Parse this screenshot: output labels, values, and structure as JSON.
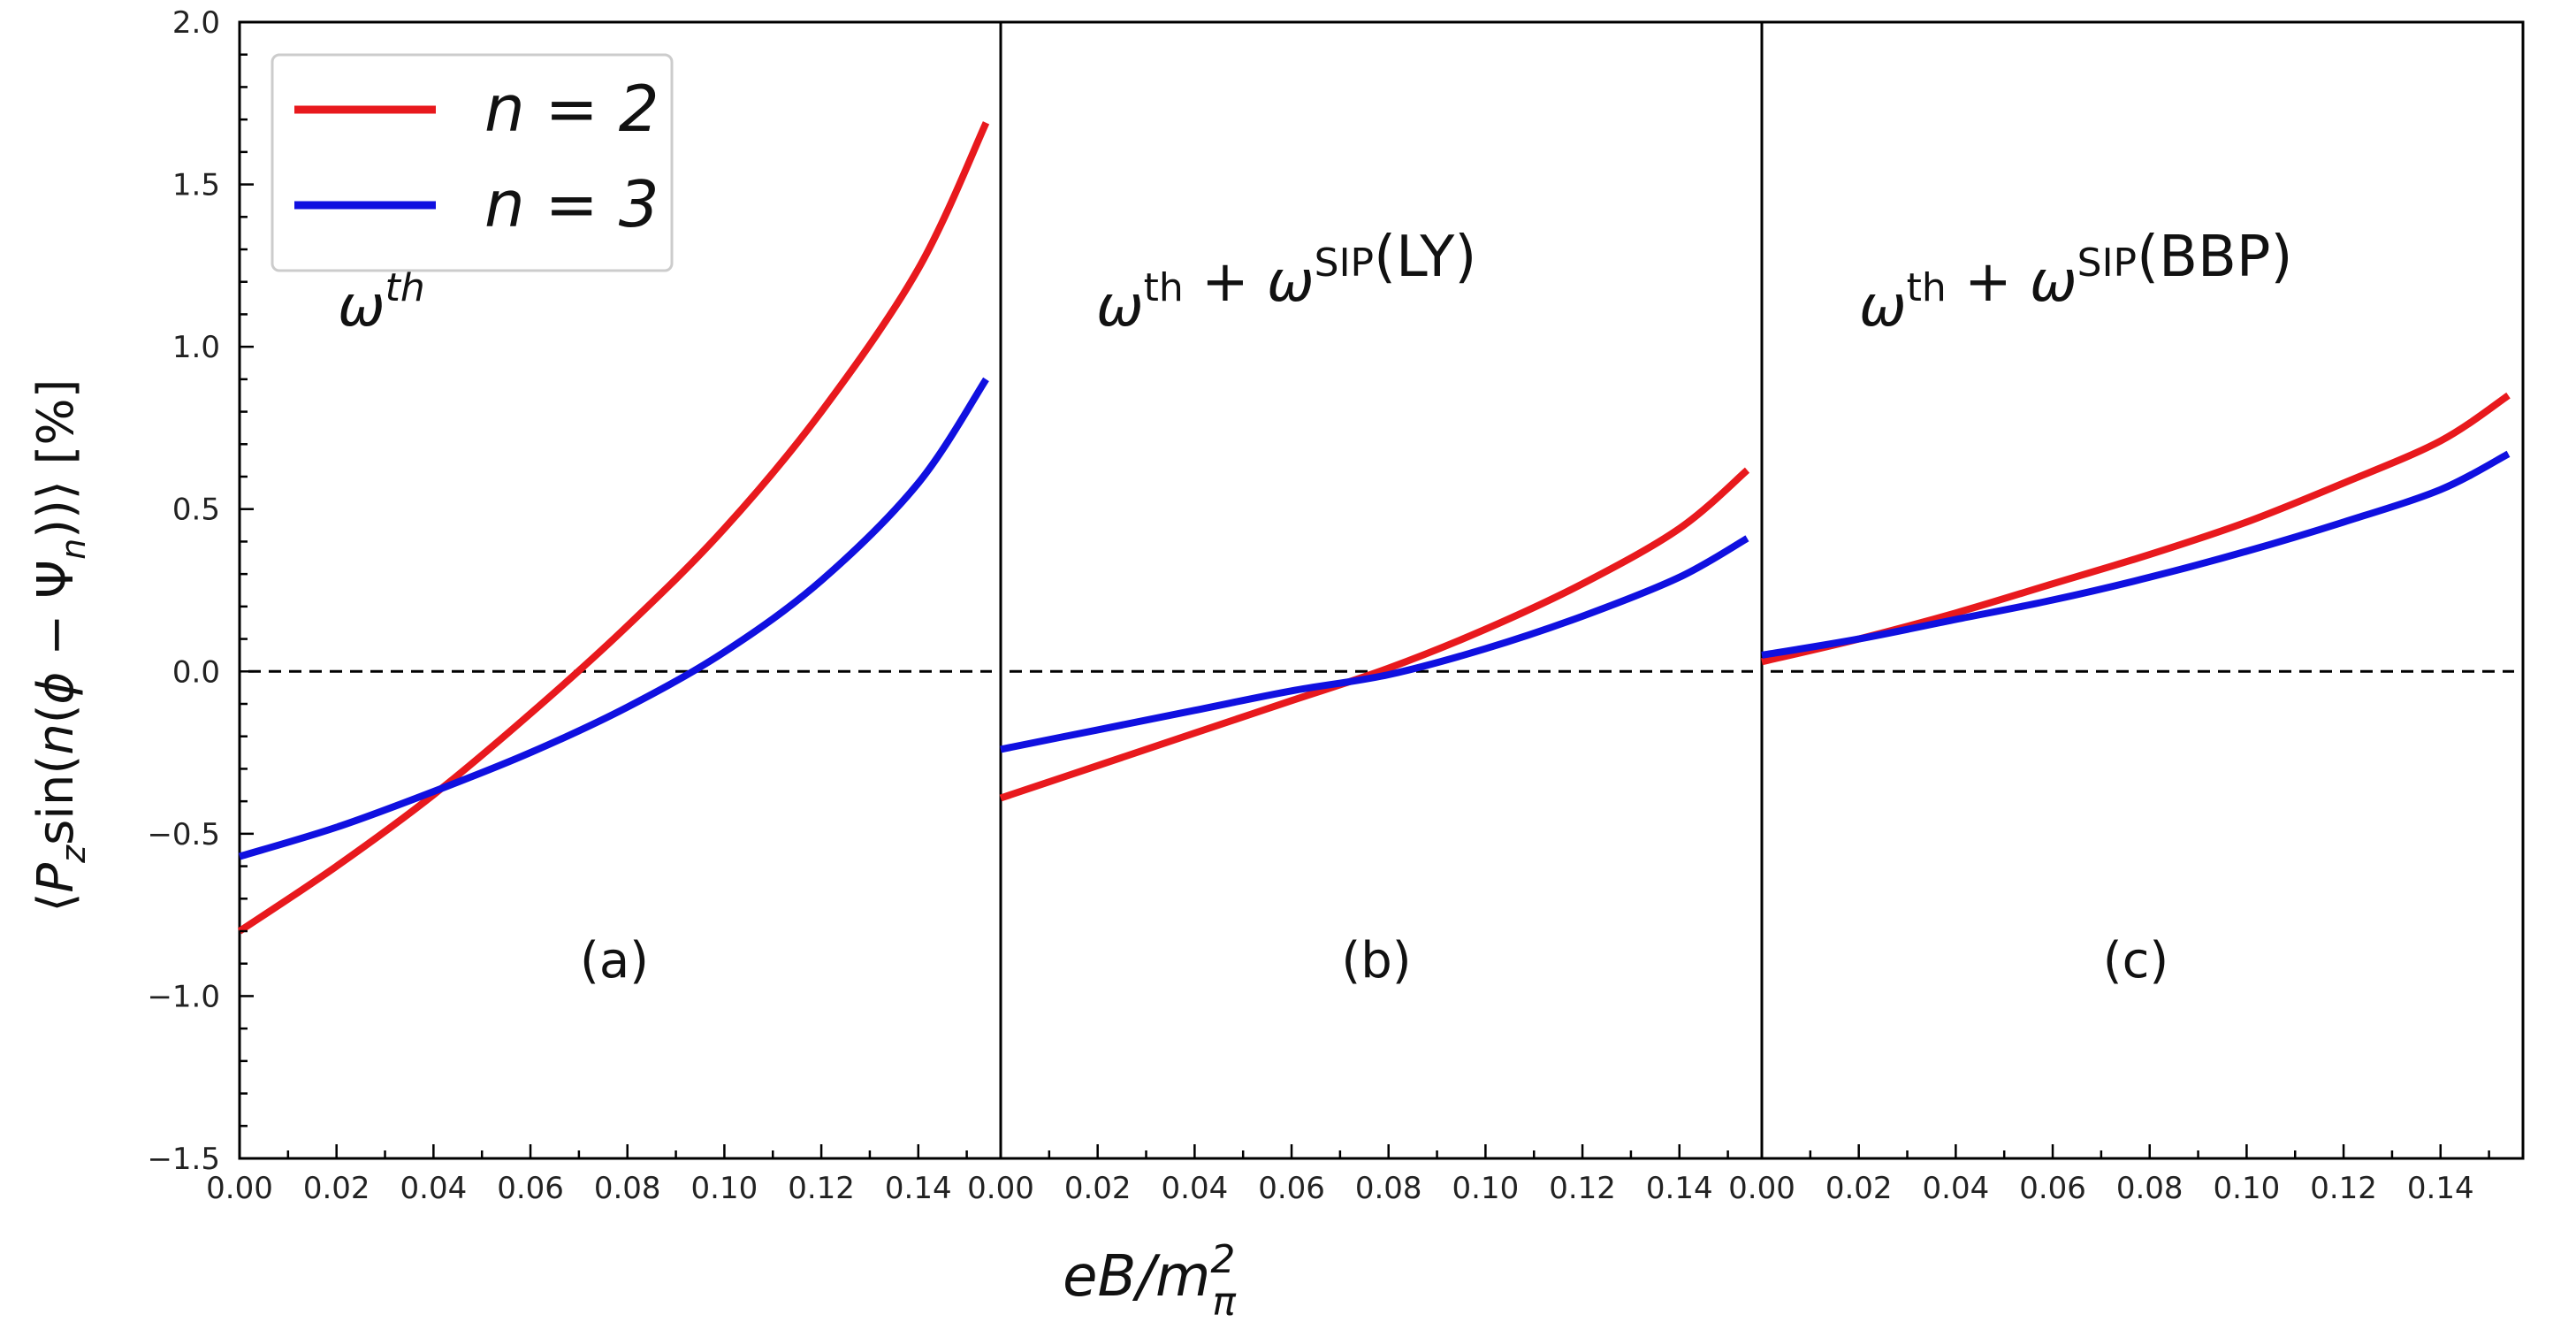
{
  "chart_data": {
    "type": "line",
    "xlabel": "eB/m_π^2",
    "ylabel": "⟨P_z sin(n(ϕ − Ψ_n))⟩ [%]",
    "ylim": [
      -1.5,
      2.0
    ],
    "xlim": [
      0.0,
      0.157
    ],
    "yticks": [
      "−1.5",
      "−1.0",
      "−0.5",
      "0.0",
      "0.5",
      "1.0",
      "1.5",
      "2.0"
    ],
    "xticks": [
      "0.00",
      "0.02",
      "0.04",
      "0.06",
      "0.08",
      "0.10",
      "0.12",
      "0.14"
    ],
    "grid": false,
    "zero_line": "dashed",
    "colors": {
      "n2": "#e8191d",
      "n3": "#1010e0"
    },
    "legend": {
      "placement": "top-left",
      "entries": [
        {
          "label": "n = 2",
          "color": "#e8191d"
        },
        {
          "label": "n = 3",
          "color": "#1010e0"
        }
      ]
    },
    "panels": [
      {
        "annotation": "ω^th",
        "tag": "(a)",
        "series": [
          {
            "name": "n = 2",
            "x": [
              0.0,
              0.02,
              0.04,
              0.06,
              0.08,
              0.1,
              0.12,
              0.14,
              0.154
            ],
            "values": [
              -0.8,
              -0.6,
              -0.38,
              -0.13,
              0.14,
              0.44,
              0.8,
              1.24,
              1.69
            ]
          },
          {
            "name": "n = 3",
            "x": [
              0.0,
              0.02,
              0.04,
              0.06,
              0.08,
              0.1,
              0.12,
              0.14,
              0.154
            ],
            "values": [
              -0.57,
              -0.48,
              -0.37,
              -0.25,
              -0.11,
              0.06,
              0.28,
              0.58,
              0.9
            ]
          }
        ]
      },
      {
        "annotation": "ω^th + ω^SIP(LY)",
        "tag": "(b)",
        "series": [
          {
            "name": "n = 2",
            "x": [
              0.0,
              0.02,
              0.04,
              0.06,
              0.08,
              0.1,
              0.12,
              0.14,
              0.154
            ],
            "values": [
              -0.39,
              -0.29,
              -0.19,
              -0.09,
              0.01,
              0.13,
              0.27,
              0.44,
              0.62
            ]
          },
          {
            "name": "n = 3",
            "x": [
              0.0,
              0.02,
              0.04,
              0.06,
              0.08,
              0.1,
              0.12,
              0.14,
              0.154
            ],
            "values": [
              -0.24,
              -0.18,
              -0.12,
              -0.06,
              -0.01,
              0.07,
              0.17,
              0.29,
              0.41
            ]
          }
        ]
      },
      {
        "annotation": "ω^th + ω^SIP(BBP)",
        "tag": "(c)",
        "series": [
          {
            "name": "n = 2",
            "x": [
              0.0,
              0.02,
              0.04,
              0.06,
              0.08,
              0.1,
              0.12,
              0.14,
              0.154
            ],
            "values": [
              0.03,
              0.1,
              0.18,
              0.27,
              0.36,
              0.46,
              0.58,
              0.71,
              0.85
            ]
          },
          {
            "name": "n = 3",
            "x": [
              0.0,
              0.02,
              0.04,
              0.06,
              0.08,
              0.1,
              0.12,
              0.14,
              0.154
            ],
            "values": [
              0.05,
              0.1,
              0.16,
              0.22,
              0.29,
              0.37,
              0.46,
              0.56,
              0.67
            ]
          }
        ]
      }
    ]
  }
}
